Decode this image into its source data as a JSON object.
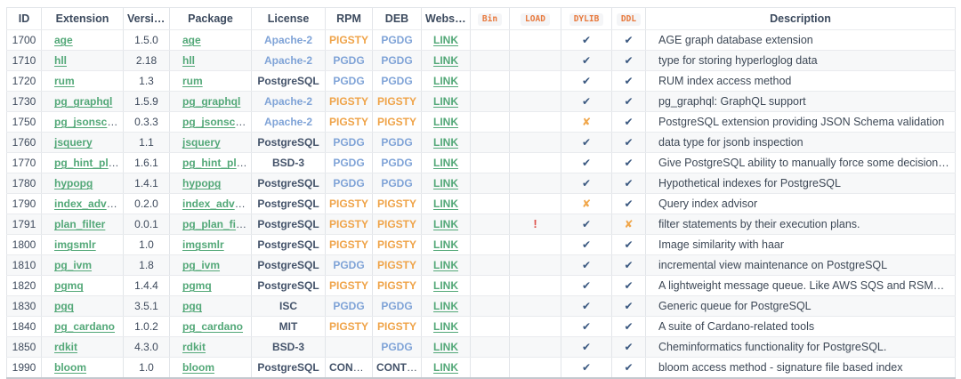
{
  "table": {
    "columns": [
      {
        "key": "id",
        "label": "ID",
        "code": false
      },
      {
        "key": "extension",
        "label": "Extension",
        "code": false
      },
      {
        "key": "version",
        "label": "Version",
        "code": false
      },
      {
        "key": "package",
        "label": "Package",
        "code": false
      },
      {
        "key": "license",
        "label": "License",
        "code": false
      },
      {
        "key": "rpm",
        "label": "RPM",
        "code": false
      },
      {
        "key": "deb",
        "label": "DEB",
        "code": false
      },
      {
        "key": "website",
        "label": "Website",
        "code": false
      },
      {
        "key": "bin",
        "label": "Bin",
        "code": true
      },
      {
        "key": "load",
        "label": "LOAD",
        "code": true
      },
      {
        "key": "dylib",
        "label": "DYLIB",
        "code": true
      },
      {
        "key": "ddl",
        "label": "DDL",
        "code": true
      },
      {
        "key": "description",
        "label": "Description",
        "code": false
      }
    ],
    "license_colors": {
      "Apache-2": "blue",
      "PostgreSQL": "dark",
      "BSD-3": "dark",
      "ISC": "dark",
      "MIT": "dark"
    },
    "repo_colors": {
      "PIGSTY": "orange",
      "PGDG": "blue",
      "CONTRIB": "dark"
    },
    "marks": {
      "check": {
        "glyph": "✔",
        "cls": "mark-check",
        "name": "check-icon"
      },
      "cross": {
        "glyph": "✘",
        "cls": "mark-cross",
        "name": "cross-icon"
      },
      "warn": {
        "glyph": "!",
        "cls": "mark-warn",
        "name": "warning-icon"
      }
    },
    "rows": [
      {
        "id": "1700",
        "extension": "age",
        "version": "1.5.0",
        "package": "age",
        "license": "Apache-2",
        "rpm": "PIGSTY",
        "deb": "PGDG",
        "website": "LINK",
        "bin": "",
        "load": "",
        "dylib": "check",
        "ddl": "check",
        "description": "AGE graph database extension"
      },
      {
        "id": "1710",
        "extension": "hll",
        "version": "2.18",
        "package": "hll",
        "license": "Apache-2",
        "rpm": "PGDG",
        "deb": "PGDG",
        "website": "LINK",
        "bin": "",
        "load": "",
        "dylib": "check",
        "ddl": "check",
        "description": "type for storing hyperloglog data"
      },
      {
        "id": "1720",
        "extension": "rum",
        "version": "1.3",
        "package": "rum",
        "license": "PostgreSQL",
        "rpm": "PGDG",
        "deb": "PGDG",
        "website": "LINK",
        "bin": "",
        "load": "",
        "dylib": "check",
        "ddl": "check",
        "description": "RUM index access method"
      },
      {
        "id": "1730",
        "extension": "pg_graphql",
        "version": "1.5.9",
        "package": "pg_graphql",
        "license": "Apache-2",
        "rpm": "PIGSTY",
        "deb": "PIGSTY",
        "website": "LINK",
        "bin": "",
        "load": "",
        "dylib": "check",
        "ddl": "check",
        "description": "pg_graphql: GraphQL support"
      },
      {
        "id": "1750",
        "extension": "pg_jsonschema",
        "version": "0.3.3",
        "package": "pg_jsonschema",
        "license": "Apache-2",
        "rpm": "PIGSTY",
        "deb": "PIGSTY",
        "website": "LINK",
        "bin": "",
        "load": "",
        "dylib": "cross",
        "ddl": "check",
        "description": "PostgreSQL extension providing JSON Schema validation"
      },
      {
        "id": "1760",
        "extension": "jsquery",
        "version": "1.1",
        "package": "jsquery",
        "license": "PostgreSQL",
        "rpm": "PGDG",
        "deb": "PGDG",
        "website": "LINK",
        "bin": "",
        "load": "",
        "dylib": "check",
        "ddl": "check",
        "description": "data type for jsonb inspection"
      },
      {
        "id": "1770",
        "extension": "pg_hint_plan",
        "version": "1.6.1",
        "package": "pg_hint_plan",
        "license": "BSD-3",
        "rpm": "PGDG",
        "deb": "PGDG",
        "website": "LINK",
        "bin": "",
        "load": "",
        "dylib": "check",
        "ddl": "check",
        "description": "Give PostgreSQL ability to manually force some decisions in execution plans."
      },
      {
        "id": "1780",
        "extension": "hypopg",
        "version": "1.4.1",
        "package": "hypopg",
        "license": "PostgreSQL",
        "rpm": "PGDG",
        "deb": "PGDG",
        "website": "LINK",
        "bin": "",
        "load": "",
        "dylib": "check",
        "ddl": "check",
        "description": "Hypothetical indexes for PostgreSQL"
      },
      {
        "id": "1790",
        "extension": "index_advisor",
        "version": "0.2.0",
        "package": "index_advisor",
        "license": "PostgreSQL",
        "rpm": "PIGSTY",
        "deb": "PIGSTY",
        "website": "LINK",
        "bin": "",
        "load": "",
        "dylib": "cross",
        "ddl": "check",
        "description": "Query index advisor"
      },
      {
        "id": "1791",
        "extension": "plan_filter",
        "version": "0.0.1",
        "package": "pg_plan_filter",
        "license": "PostgreSQL",
        "rpm": "PIGSTY",
        "deb": "PIGSTY",
        "website": "LINK",
        "bin": "",
        "load": "warn",
        "dylib": "check",
        "ddl": "cross",
        "description": "filter statements by their execution plans."
      },
      {
        "id": "1800",
        "extension": "imgsmlr",
        "version": "1.0",
        "package": "imgsmlr",
        "license": "PostgreSQL",
        "rpm": "PIGSTY",
        "deb": "PIGSTY",
        "website": "LINK",
        "bin": "",
        "load": "",
        "dylib": "check",
        "ddl": "check",
        "description": "Image similarity with haar"
      },
      {
        "id": "1810",
        "extension": "pg_ivm",
        "version": "1.8",
        "package": "pg_ivm",
        "license": "PostgreSQL",
        "rpm": "PGDG",
        "deb": "PIGSTY",
        "website": "LINK",
        "bin": "",
        "load": "",
        "dylib": "check",
        "ddl": "check",
        "description": "incremental view maintenance on PostgreSQL"
      },
      {
        "id": "1820",
        "extension": "pgmq",
        "version": "1.4.4",
        "package": "pgmq",
        "license": "PostgreSQL",
        "rpm": "PIGSTY",
        "deb": "PIGSTY",
        "website": "LINK",
        "bin": "",
        "load": "",
        "dylib": "check",
        "ddl": "check",
        "description": "A lightweight message queue. Like AWS SQS and RSMQ but on Postgres."
      },
      {
        "id": "1830",
        "extension": "pgq",
        "version": "3.5.1",
        "package": "pgq",
        "license": "ISC",
        "rpm": "PGDG",
        "deb": "PGDG",
        "website": "LINK",
        "bin": "",
        "load": "",
        "dylib": "check",
        "ddl": "check",
        "description": "Generic queue for PostgreSQL"
      },
      {
        "id": "1840",
        "extension": "pg_cardano",
        "version": "1.0.2",
        "package": "pg_cardano",
        "license": "MIT",
        "rpm": "PIGSTY",
        "deb": "PIGSTY",
        "website": "LINK",
        "bin": "",
        "load": "",
        "dylib": "check",
        "ddl": "check",
        "description": "A suite of Cardano-related tools"
      },
      {
        "id": "1850",
        "extension": "rdkit",
        "version": "4.3.0",
        "package": "rdkit",
        "license": "BSD-3",
        "rpm": "",
        "deb": "PGDG",
        "website": "LINK",
        "bin": "",
        "load": "",
        "dylib": "check",
        "ddl": "check",
        "description": "Cheminformatics functionality for PostgreSQL."
      },
      {
        "id": "1990",
        "extension": "bloom",
        "version": "1.0",
        "package": "bloom",
        "license": "PostgreSQL",
        "rpm": "CONTRIB",
        "deb": "CONTRIB",
        "website": "LINK",
        "bin": "",
        "load": "",
        "dylib": "check",
        "ddl": "check",
        "description": "bloom access method - signature file based index"
      }
    ]
  }
}
